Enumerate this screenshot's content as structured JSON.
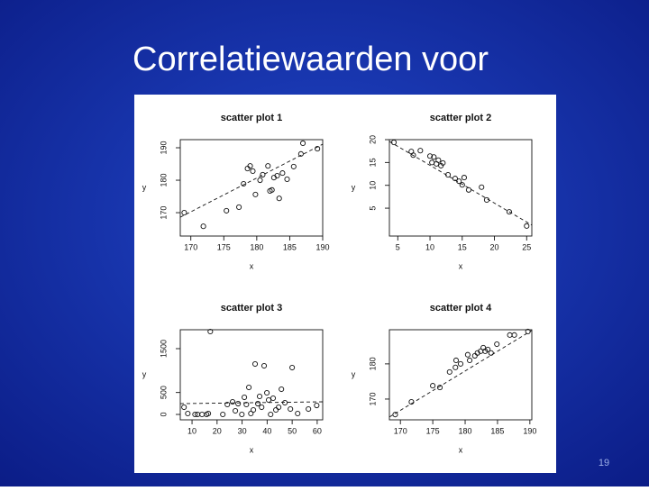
{
  "title": "Correlatiewaarden voor",
  "page_number": "19",
  "chart_data": [
    {
      "type": "scatter",
      "title": "scatter plot 1",
      "x_label": "x",
      "y_label": "y",
      "x": [
        169.0,
        171.9,
        175.4,
        177.3,
        178.0,
        178.6,
        179.0,
        179.4,
        179.8,
        180.5,
        180.9,
        181.7,
        182.0,
        182.3,
        182.6,
        183.1,
        183.4,
        183.9,
        184.6,
        185.6,
        186.7,
        187.0,
        189.2
      ],
      "y": [
        170.0,
        165.8,
        170.6,
        171.7,
        178.9,
        183.6,
        184.4,
        182.8,
        175.6,
        180.0,
        181.7,
        184.4,
        176.7,
        177.0,
        180.8,
        181.4,
        174.4,
        182.2,
        180.3,
        184.2,
        188.1,
        191.4,
        189.7
      ],
      "xlim": [
        168.4,
        190
      ],
      "ylim": [
        162.8,
        192.5
      ],
      "xticks": [
        170,
        175,
        180,
        185,
        190
      ],
      "yticks": [
        170,
        180,
        190
      ],
      "fit": {
        "x": [
          168.4,
          190
        ],
        "y": [
          168.6,
          191.1
        ]
      }
    },
    {
      "type": "scatter",
      "title": "scatter plot 2",
      "x_label": "x",
      "y_label": "y",
      "x": [
        4.4,
        7.1,
        7.4,
        8.5,
        10.0,
        10.3,
        10.6,
        11.0,
        11.3,
        11.7,
        12.0,
        12.8,
        13.9,
        14.5,
        15.0,
        15.3,
        16.0,
        18.0,
        18.8,
        22.3,
        25.0
      ],
      "y": [
        19.4,
        17.4,
        16.6,
        17.6,
        16.4,
        15.0,
        16.2,
        14.7,
        15.5,
        14.3,
        14.9,
        12.3,
        11.5,
        10.9,
        10.1,
        11.7,
        9.0,
        9.6,
        6.8,
        4.2,
        1.1
      ],
      "xlim": [
        3.7,
        25.8
      ],
      "ylim": [
        -1.1,
        20
      ],
      "xticks": [
        5,
        10,
        15,
        20,
        25
      ],
      "yticks": [
        5,
        10,
        15,
        20
      ],
      "fit": {
        "x": [
          3.7,
          25.8
        ],
        "y": [
          19.6,
          1.3
        ]
      }
    },
    {
      "type": "scatter",
      "title": "scatter plot 3",
      "x_label": "x",
      "y_label": "y",
      "x": [
        6.8,
        8.3,
        11.2,
        12.2,
        14.0,
        15.8,
        17.3,
        16.5,
        22.3,
        24.1,
        26.2,
        27.3,
        28.4,
        29.9,
        30.9,
        31.7,
        32.7,
        33.5,
        34.5,
        35.2,
        36.3,
        37.0,
        37.8,
        38.8,
        39.9,
        40.6,
        41.4,
        42.4,
        43.5,
        44.6,
        45.7,
        47.1,
        49.3,
        50.0,
        52.2,
        56.5,
        59.8
      ],
      "y": [
        164,
        21,
        0,
        0,
        0,
        0,
        1890,
        21,
        0,
        226,
        288,
        82,
        246,
        0,
        390,
        226,
        616,
        21,
        103,
        1150,
        246,
        411,
        164,
        1109,
        493,
        329,
        0,
        370,
        103,
        164,
        575,
        267,
        123,
        1068,
        21,
        123,
        205
      ],
      "xlim": [
        5.3,
        62.2
      ],
      "ylim": [
        -123,
        1931
      ],
      "xticks": [
        10,
        20,
        30,
        40,
        50,
        60
      ],
      "yticks": [
        0,
        500,
        1500
      ],
      "fit": {
        "x": [
          5.3,
          62.2
        ],
        "y": [
          246,
          288
        ]
      }
    },
    {
      "type": "scatter",
      "title": "scatter plot 4",
      "x_label": "x",
      "y_label": "y",
      "x": [
        169.2,
        171.7,
        175.0,
        176.1,
        177.6,
        178.5,
        178.6,
        179.3,
        180.4,
        180.7,
        181.5,
        181.9,
        182.4,
        182.8,
        183.1,
        183.5,
        184.0,
        184.9,
        186.9,
        187.6,
        189.7
      ],
      "y": [
        165.6,
        169.2,
        173.8,
        173.3,
        177.7,
        179.0,
        181.0,
        180.0,
        182.6,
        181.0,
        182.3,
        183.1,
        183.6,
        184.6,
        183.6,
        184.1,
        183.1,
        185.6,
        188.2,
        188.2,
        189.2
      ],
      "xlim": [
        168.3,
        190.3
      ],
      "ylim": [
        164.1,
        189.7
      ],
      "xticks": [
        170,
        175,
        180,
        185,
        190
      ],
      "yticks": [
        170,
        180
      ],
      "fit": {
        "x": [
          168.3,
          190.3
        ],
        "y": [
          164.9,
          189.5
        ]
      }
    }
  ]
}
